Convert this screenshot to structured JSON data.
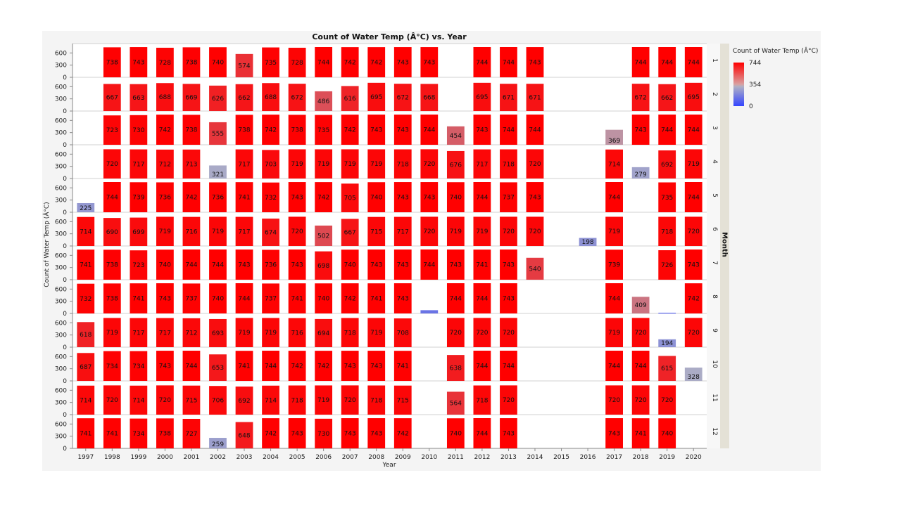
{
  "chart_data": {
    "type": "bar",
    "title": "Count of Water Temp (Â°C) vs. Year",
    "xlabel": "Year",
    "ylabel": "Count of Water Temp (Â°C)",
    "facet_label": "Month",
    "years": [
      "1997",
      "1998",
      "1999",
      "2000",
      "2001",
      "2002",
      "2003",
      "2004",
      "2005",
      "2006",
      "2007",
      "2008",
      "2009",
      "2010",
      "2011",
      "2012",
      "2013",
      "2014",
      "2015",
      "2016",
      "2017",
      "2018",
      "2019",
      "2020"
    ],
    "months": [
      "1",
      "2",
      "3",
      "4",
      "5",
      "6",
      "7",
      "8",
      "9",
      "10",
      "11",
      "12"
    ],
    "y_ticks": [
      "600",
      "300",
      "0"
    ],
    "ylim": [
      0,
      744
    ],
    "color_scale": {
      "title": "Count of Water Temp (Â°C)",
      "max": 744,
      "mid": 354,
      "min": 0,
      "max_label": "744",
      "mid_label": "354",
      "min_label": "0",
      "high_color": "#ff0000",
      "mid_color": "#b0b0c4",
      "low_color": "#3344ff"
    },
    "values": [
      [
        null,
        738,
        743,
        728,
        738,
        740,
        574,
        735,
        728,
        744,
        742,
        742,
        743,
        743,
        null,
        744,
        744,
        743,
        null,
        null,
        null,
        744,
        744,
        744
      ],
      [
        null,
        667,
        663,
        688,
        669,
        626,
        662,
        688,
        672,
        486,
        616,
        695,
        672,
        668,
        null,
        695,
        671,
        671,
        null,
        null,
        null,
        672,
        662,
        695
      ],
      [
        null,
        723,
        730,
        742,
        738,
        555,
        738,
        742,
        738,
        735,
        742,
        743,
        743,
        744,
        454,
        743,
        744,
        744,
        null,
        null,
        369,
        743,
        744,
        744
      ],
      [
        null,
        720,
        717,
        712,
        713,
        321,
        717,
        703,
        719,
        719,
        719,
        719,
        718,
        720,
        676,
        717,
        718,
        720,
        null,
        null,
        714,
        279,
        692,
        719
      ],
      [
        225,
        744,
        739,
        736,
        742,
        736,
        741,
        732,
        743,
        742,
        705,
        740,
        743,
        743,
        740,
        744,
        737,
        743,
        null,
        null,
        744,
        null,
        735,
        744
      ],
      [
        714,
        690,
        699,
        719,
        716,
        719,
        717,
        674,
        720,
        502,
        667,
        715,
        717,
        720,
        719,
        719,
        720,
        720,
        null,
        198,
        719,
        null,
        718,
        720
      ],
      [
        741,
        738,
        723,
        740,
        744,
        744,
        743,
        736,
        743,
        698,
        740,
        743,
        743,
        744,
        743,
        741,
        743,
        540,
        null,
        null,
        739,
        null,
        726,
        743
      ],
      [
        732,
        738,
        741,
        743,
        737,
        740,
        744,
        737,
        741,
        740,
        742,
        741,
        743,
        80,
        744,
        744,
        743,
        null,
        null,
        null,
        744,
        409,
        10,
        742
      ],
      [
        618,
        719,
        717,
        717,
        712,
        693,
        719,
        719,
        716,
        694,
        718,
        719,
        708,
        null,
        720,
        720,
        720,
        null,
        null,
        null,
        719,
        720,
        194,
        720
      ],
      [
        687,
        734,
        734,
        743,
        744,
        653,
        741,
        744,
        742,
        742,
        743,
        743,
        741,
        null,
        638,
        744,
        744,
        null,
        null,
        null,
        744,
        744,
        615,
        328
      ],
      [
        714,
        720,
        714,
        720,
        715,
        706,
        692,
        714,
        718,
        719,
        720,
        718,
        715,
        null,
        564,
        718,
        720,
        null,
        null,
        null,
        720,
        720,
        720,
        null
      ],
      [
        741,
        741,
        734,
        738,
        727,
        259,
        648,
        742,
        743,
        730,
        743,
        743,
        742,
        null,
        740,
        744,
        743,
        null,
        null,
        null,
        743,
        741,
        740,
        null
      ]
    ],
    "data_labels": [
      [
        "",
        "738",
        "743",
        "728",
        "738",
        "740",
        "574",
        "735",
        "728",
        "744",
        "742",
        "742",
        "743",
        "743",
        "",
        "744",
        "744",
        "743",
        "",
        "",
        "",
        "744",
        "744",
        "744"
      ],
      [
        "",
        "667",
        "663",
        "688",
        "669",
        "626",
        "662",
        "688",
        "672",
        "486",
        "616",
        "695",
        "672",
        "668",
        "",
        "695",
        "671",
        "671",
        "",
        "",
        "",
        "672",
        "662",
        "695"
      ],
      [
        "",
        "723",
        "730",
        "742",
        "738",
        "555",
        "738",
        "742",
        "738",
        "735",
        "742",
        "743",
        "743",
        "744",
        "454",
        "743",
        "744",
        "744",
        "",
        "",
        "369",
        "743",
        "744",
        "744"
      ],
      [
        "",
        "720",
        "717",
        "712",
        "713",
        "321",
        "717",
        "703",
        "719",
        "719",
        "719",
        "719",
        "718",
        "720",
        "676",
        "717",
        "718",
        "720",
        "",
        "",
        "714",
        "279",
        "692",
        "719"
      ],
      [
        "225",
        "744",
        "739",
        "736",
        "742",
        "736",
        "741",
        "732",
        "743",
        "742",
        "705",
        "740",
        "743",
        "743",
        "740",
        "744",
        "737",
        "743",
        "",
        "",
        "744",
        "",
        "735",
        "744"
      ],
      [
        "714",
        "690",
        "699",
        "719",
        "716",
        "719",
        "717",
        "674",
        "720",
        "502",
        "667",
        "715",
        "717",
        "720",
        "719",
        "719",
        "720",
        "720",
        "",
        "198",
        "719",
        "",
        "718",
        "720"
      ],
      [
        "741",
        "738",
        "723",
        "740",
        "744",
        "744",
        "743",
        "736",
        "743",
        "698",
        "740",
        "743",
        "743",
        "744",
        "743",
        "741",
        "743",
        "540",
        "",
        "",
        "739",
        "",
        "726",
        "743"
      ],
      [
        "732",
        "738",
        "741",
        "743",
        "737",
        "740",
        "744",
        "737",
        "741",
        "740",
        "742",
        "741",
        "743",
        "",
        "744",
        "744",
        "743",
        "",
        "",
        "",
        "744",
        "409",
        "",
        "742"
      ],
      [
        "618",
        "719",
        "717",
        "717",
        "712",
        "693",
        "719",
        "719",
        "716",
        "694",
        "718",
        "719",
        "708",
        "",
        "720",
        "720",
        "720",
        "",
        "",
        "",
        "719",
        "720",
        "194",
        "720"
      ],
      [
        "687",
        "734",
        "734",
        "743",
        "744",
        "653",
        "741",
        "744",
        "742",
        "742",
        "743",
        "743",
        "741",
        "",
        "638",
        "744",
        "744",
        "",
        "",
        "",
        "744",
        "744",
        "615",
        "328"
      ],
      [
        "714",
        "720",
        "714",
        "720",
        "715",
        "706",
        "692",
        "714",
        "718",
        "719",
        "720",
        "718",
        "715",
        "",
        "564",
        "718",
        "720",
        "",
        "",
        "",
        "720",
        "720",
        "720",
        ""
      ],
      [
        "741",
        "741",
        "734",
        "738",
        "727",
        "259",
        "648",
        "742",
        "743",
        "730",
        "743",
        "743",
        "742",
        "",
        "740",
        "744",
        "743",
        "",
        "",
        "",
        "743",
        "741",
        "740",
        ""
      ]
    ]
  }
}
